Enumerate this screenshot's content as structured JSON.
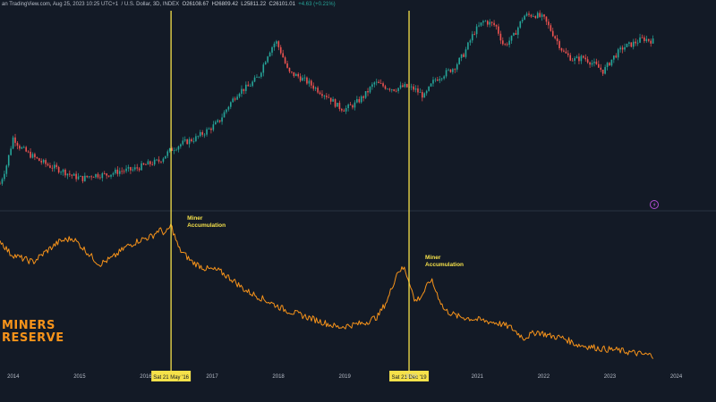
{
  "header": {
    "source": "an TradingView.com, Aug 25, 2023 10:25 UTC+1",
    "symbol": "/ U.S. Dollar, 3D, INDEX",
    "open": "O26108.67",
    "high": "H26809.42",
    "low": "L25811.22",
    "close": "C26101.01",
    "change": "+4.63 (+0.21%)"
  },
  "brand_title": {
    "line1": "MINERS",
    "line2": "RESERVE"
  },
  "annotations": [
    {
      "label_line1": "Miner",
      "label_line2": "Accumulation",
      "year": 2016.38
    },
    {
      "label_line1": "Miner",
      "label_line2": "Accumulation",
      "year": 2019.97
    }
  ],
  "crosshair_labels": [
    "Sat 21 May '16",
    "Sat 21 Dec '19"
  ],
  "colors": {
    "background": "#131a26",
    "price_up": "#26a69a",
    "price_down": "#ef5350",
    "reserve_line": "#f7931a",
    "marker": "#f5e14a",
    "event_icon": "#b04cd2"
  },
  "chart_data": {
    "type": "line",
    "x_axis": {
      "ticks": [
        "2014",
        "2015",
        "2016",
        "2017",
        "2018",
        "2019",
        "2020",
        "2021",
        "2022",
        "2023",
        "2024"
      ],
      "range": [
        2013.8,
        2024.6
      ]
    },
    "grid": false,
    "legend": "none",
    "series": [
      {
        "kind": "candlestick",
        "x": [
          2013.8,
          2013.9,
          2014.0,
          2014.1,
          2014.25,
          2014.4,
          2014.55,
          2014.75,
          2014.9,
          2015.05,
          2015.2,
          2015.4,
          2015.6,
          2015.8,
          2016.0,
          2016.2,
          2016.38,
          2016.55,
          2016.75,
          2016.95,
          2017.1,
          2017.25,
          2017.4,
          2017.55,
          2017.7,
          2017.85,
          2017.96,
          2018.05,
          2018.15,
          2018.3,
          2018.45,
          2018.6,
          2018.75,
          2018.9,
          2019.0,
          2019.15,
          2019.3,
          2019.45,
          2019.6,
          2019.75,
          2019.9,
          2020.05,
          2020.2,
          2020.35,
          2020.5,
          2020.65,
          2020.8,
          2020.95,
          2021.1,
          2021.28,
          2021.4,
          2021.55,
          2021.7,
          2021.86,
          2022.0,
          2022.15,
          2022.3,
          2022.45,
          2022.6,
          2022.75,
          2022.9,
          2023.05,
          2023.2,
          2023.35,
          2023.5,
          2023.65
        ],
        "y": [
          0.13,
          0.28,
          0.5,
          0.42,
          0.36,
          0.31,
          0.27,
          0.23,
          0.19,
          0.17,
          0.2,
          0.2,
          0.23,
          0.24,
          0.28,
          0.31,
          0.4,
          0.45,
          0.49,
          0.56,
          0.62,
          0.75,
          0.86,
          0.9,
          0.98,
          1.17,
          1.26,
          1.16,
          1.01,
          0.98,
          0.93,
          0.87,
          0.82,
          0.74,
          0.72,
          0.76,
          0.83,
          0.93,
          0.9,
          0.88,
          0.9,
          0.88,
          0.82,
          0.95,
          1.0,
          1.05,
          1.16,
          1.33,
          1.42,
          1.38,
          1.22,
          1.3,
          1.46,
          1.47,
          1.44,
          1.31,
          1.17,
          1.11,
          1.13,
          1.08,
          1.02,
          1.13,
          1.21,
          1.24,
          1.28,
          1.26
        ]
      },
      {
        "kind": "line",
        "x": [
          2013.8,
          2013.95,
          2014.1,
          2014.3,
          2014.5,
          2014.7,
          2014.9,
          2015.1,
          2015.3,
          2015.5,
          2015.7,
          2015.9,
          2016.1,
          2016.2,
          2016.3,
          2016.38,
          2016.5,
          2016.7,
          2016.9,
          2017.1,
          2017.3,
          2017.5,
          2017.7,
          2017.9,
          2018.1,
          2018.3,
          2018.5,
          2018.7,
          2018.9,
          2019.1,
          2019.3,
          2019.5,
          2019.65,
          2019.8,
          2019.9,
          2020.0,
          2020.05,
          2020.15,
          2020.3,
          2020.5,
          2020.7,
          2020.9,
          2021.1,
          2021.3,
          2021.5,
          2021.7,
          2021.9,
          2022.1,
          2022.3,
          2022.5,
          2022.7,
          2022.9,
          2023.1,
          2023.3,
          2023.5,
          2023.65
        ],
        "y": [
          0.86,
          0.74,
          0.7,
          0.66,
          0.76,
          0.85,
          0.88,
          0.76,
          0.64,
          0.7,
          0.8,
          0.86,
          0.9,
          0.96,
          0.92,
          1.0,
          0.78,
          0.66,
          0.6,
          0.58,
          0.5,
          0.4,
          0.34,
          0.28,
          0.22,
          0.18,
          0.14,
          0.1,
          0.06,
          0.08,
          0.1,
          0.16,
          0.32,
          0.58,
          0.6,
          0.44,
          0.3,
          0.34,
          0.5,
          0.22,
          0.16,
          0.14,
          0.12,
          0.1,
          0.06,
          -0.04,
          0.02,
          -0.02,
          -0.04,
          -0.1,
          -0.12,
          -0.14,
          -0.15,
          -0.17,
          -0.19,
          -0.2
        ]
      }
    ]
  }
}
